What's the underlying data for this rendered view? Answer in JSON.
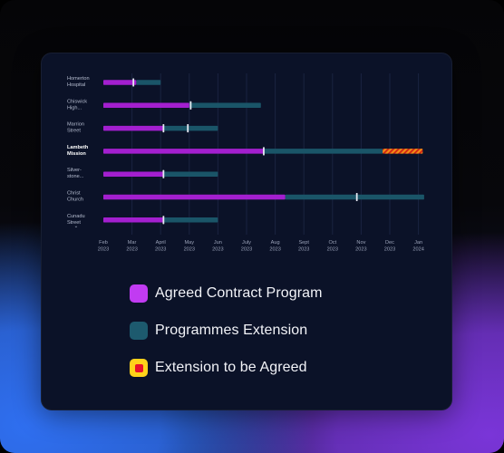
{
  "colors": {
    "agreed": "#a31fcf",
    "extension": "#1a5568",
    "to_be_agreed": "#f28c16",
    "to_be_agreed_stripe": "#d12414",
    "marker": "#e6e9f2",
    "gridline": "#1a2340"
  },
  "chart_data": {
    "type": "gantt",
    "x_ticks": [
      {
        "month": "Feb",
        "year": "2023"
      },
      {
        "month": "Mar",
        "year": "2023"
      },
      {
        "month": "April",
        "year": "2023"
      },
      {
        "month": "May",
        "year": "2023"
      },
      {
        "month": "Jun",
        "year": "2023"
      },
      {
        "month": "July",
        "year": "2023"
      },
      {
        "month": "Aug",
        "year": "2023"
      },
      {
        "month": "Sept",
        "year": "2023"
      },
      {
        "month": "Oct",
        "year": "2023"
      },
      {
        "month": "Nov",
        "year": "2023"
      },
      {
        "month": "Dec",
        "year": "2023"
      },
      {
        "month": "Jan",
        "year": "2024"
      }
    ],
    "rows": [
      {
        "label": [
          "Homerton",
          "Hospital"
        ],
        "highlight": false,
        "agreed": [
          "2023-02",
          "2023-03.15"
        ],
        "extension": [
          "2023-03.15",
          "2023-04"
        ],
        "to_be_agreed": null,
        "markers": [
          "2023-03.05"
        ]
      },
      {
        "label": [
          "Chiswick",
          "High..."
        ],
        "highlight": false,
        "agreed": [
          "2023-02",
          "2023-05"
        ],
        "extension": [
          "2023-05",
          "2023-07.5"
        ],
        "to_be_agreed": null,
        "markers": [
          "2023-05.05"
        ]
      },
      {
        "label": [
          "Marrion",
          "Street"
        ],
        "highlight": false,
        "agreed": [
          "2023-02",
          "2023-04.1"
        ],
        "extension": [
          "2023-04.1",
          "2023-06"
        ],
        "to_be_agreed": null,
        "markers": [
          "2023-04.1",
          "2023-04.95"
        ]
      },
      {
        "label": [
          "Lambeth",
          "Mission"
        ],
        "highlight": true,
        "agreed": [
          "2023-02",
          "2023-07.6"
        ],
        "extension": [
          "2023-07.6",
          "2023-11.75"
        ],
        "to_be_agreed": [
          "2023-11.75",
          "2024-01.15"
        ],
        "markers": [
          "2023-07.6"
        ]
      },
      {
        "label": [
          "Silver-",
          "stone..."
        ],
        "highlight": false,
        "agreed": [
          "2023-02",
          "2023-04.1"
        ],
        "extension": [
          "2023-04.1",
          "2023-06"
        ],
        "to_be_agreed": null,
        "markers": [
          "2023-04.1"
        ]
      },
      {
        "label": [
          "Christ",
          "Church"
        ],
        "highlight": false,
        "agreed": [
          "2023-02",
          "2023-08.35"
        ],
        "extension": [
          "2023-08.35",
          "2024-01.2"
        ],
        "to_be_agreed": null,
        "markers": [
          "2023-10.85"
        ]
      },
      {
        "label": [
          "Cunadu",
          "Street"
        ],
        "highlight": false,
        "agreed": [
          "2023-02",
          "2023-04.1"
        ],
        "extension": [
          "2023-04.1",
          "2023-06"
        ],
        "to_be_agreed": null,
        "markers": [
          "2023-04.1"
        ]
      }
    ],
    "more_rows_indicator": "⌄"
  },
  "legend": [
    {
      "label": "Agreed Contract Program",
      "kind": "agreed"
    },
    {
      "label": "Programmes Extension",
      "kind": "extension"
    },
    {
      "label": "Extension to be Agreed",
      "kind": "to_be_agreed"
    }
  ]
}
